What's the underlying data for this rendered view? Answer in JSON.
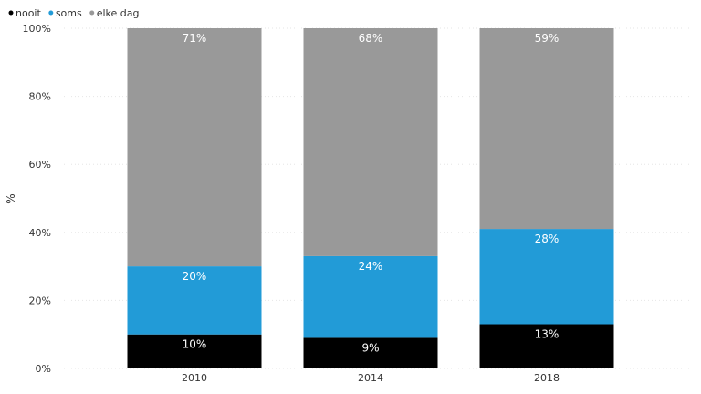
{
  "chart_data": {
    "type": "bar",
    "stacked": true,
    "title": "",
    "xlabel": "",
    "ylabel": "%",
    "ylim": [
      0,
      100
    ],
    "yticks": [
      "0%",
      "20%",
      "40%",
      "60%",
      "80%",
      "100%"
    ],
    "grid": true,
    "legend_position": "top-left",
    "categories": [
      "2010",
      "2014",
      "2018"
    ],
    "series": [
      {
        "name": "nooit",
        "color": "#000000",
        "values": [
          10,
          9,
          13
        ],
        "labels": [
          "10%",
          "9%",
          "13%"
        ]
      },
      {
        "name": "soms",
        "color": "#229bd7",
        "values": [
          20,
          24,
          28
        ],
        "labels": [
          "20%",
          "24%",
          "28%"
        ]
      },
      {
        "name": "elke dag",
        "color": "#999999",
        "values": [
          71,
          68,
          59
        ],
        "labels": [
          "71%",
          "68%",
          "59%"
        ]
      }
    ]
  }
}
